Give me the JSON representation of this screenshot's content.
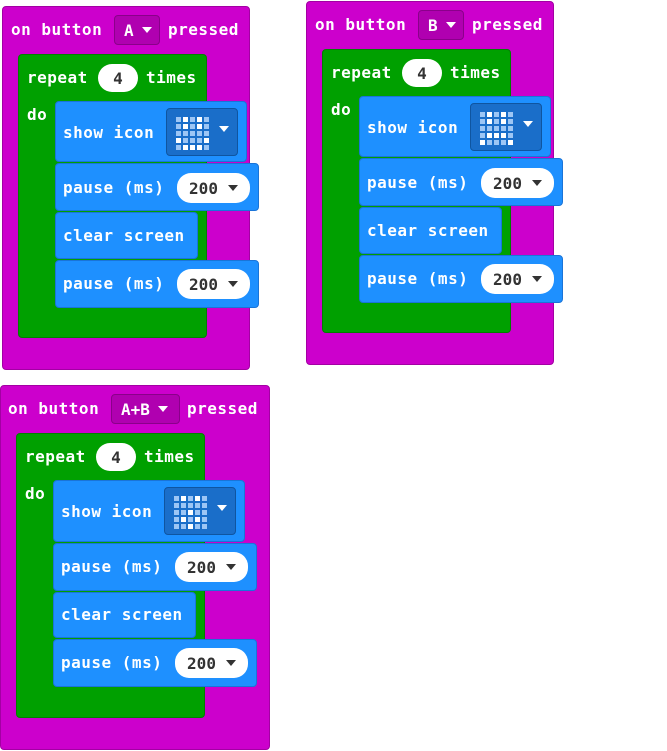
{
  "colors": {
    "event": "#cc00cc",
    "loop": "#00a000",
    "statement": "#1e90ff"
  },
  "events": [
    {
      "on_label": "on button",
      "button": "A",
      "pressed_label": "pressed",
      "repeat_label": "repeat",
      "repeat_count": "4",
      "times_label": "times",
      "do_label": "do",
      "show_icon_label": "show icon",
      "icon": "happy-face-icon",
      "pause1_label": "pause (ms)",
      "pause1_value": "200",
      "clear_label": "clear screen",
      "pause2_label": "pause (ms)",
      "pause2_value": "200"
    },
    {
      "on_label": "on button",
      "button": "B",
      "pressed_label": "pressed",
      "repeat_label": "repeat",
      "repeat_count": "4",
      "times_label": "times",
      "do_label": "do",
      "show_icon_label": "show icon",
      "icon": "sad-face-icon",
      "pause1_label": "pause (ms)",
      "pause1_value": "200",
      "clear_label": "clear screen",
      "pause2_label": "pause (ms)",
      "pause2_value": "200"
    },
    {
      "on_label": "on button",
      "button": "A+B",
      "pressed_label": "pressed",
      "repeat_label": "repeat",
      "repeat_count": "4",
      "times_label": "times",
      "do_label": "do",
      "show_icon_label": "show icon",
      "icon": "surprised-face-icon",
      "pause1_label": "pause (ms)",
      "pause1_value": "200",
      "clear_label": "clear screen",
      "pause2_label": "pause (ms)",
      "pause2_value": "200"
    }
  ]
}
